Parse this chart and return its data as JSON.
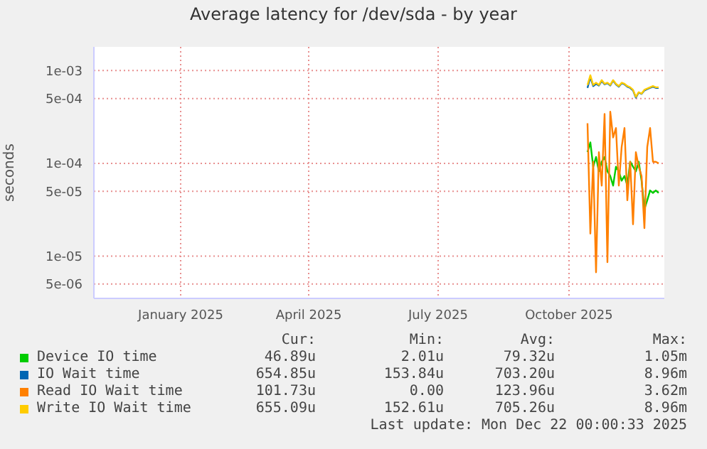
{
  "chart_data": {
    "type": "line",
    "title": "Average latency for /dev/sda - by year",
    "ylabel": "seconds",
    "x": [
      "2025-10-14",
      "2025-10-16",
      "2025-10-18",
      "2025-10-20",
      "2025-10-22",
      "2025-10-24",
      "2025-10-26",
      "2025-10-28",
      "2025-10-30",
      "2025-11-01",
      "2025-11-03",
      "2025-11-05",
      "2025-11-07",
      "2025-11-09",
      "2025-11-11",
      "2025-11-13",
      "2025-11-15",
      "2025-11-17",
      "2025-11-19",
      "2025-11-21",
      "2025-11-23",
      "2025-11-25",
      "2025-11-27",
      "2025-11-29",
      "2025-12-01",
      "2025-12-03"
    ],
    "series": [
      {
        "name": "Device IO time",
        "color": "#00cc00",
        "values": [
          0.000132,
          0.000168,
          9.2e-05,
          0.000117,
          8.2e-05,
          0.000104,
          0.000117,
          8.2e-05,
          7.3e-05,
          5.75e-05,
          9.2e-05,
          8.2e-05,
          6.5e-05,
          7.3e-05,
          5.75e-05,
          0.000104,
          9.2e-05,
          8.2e-05,
          0.000104,
          6.5e-05,
          3.2e-05,
          4e-05,
          5.1e-05,
          4.8e-05,
          5.1e-05,
          4.8e-05
        ]
      },
      {
        "name": "IO Wait time",
        "color": "#0066b3",
        "values": [
          0.00065,
          0.00085,
          0.00068,
          0.00072,
          0.00069,
          0.00077,
          0.00071,
          0.00073,
          0.00069,
          0.00078,
          0.00071,
          0.00067,
          0.00073,
          0.00071,
          0.00067,
          0.00065,
          0.00061,
          0.00051,
          0.00058,
          0.00056,
          0.00061,
          0.00063,
          0.00065,
          0.00067,
          0.00065,
          0.00065
        ]
      },
      {
        "name": "Read IO Wait time",
        "color": "#ff8000",
        "values": [
          0.00027,
          1.75e-05,
          0.000104,
          6.7e-06,
          0.000132,
          5.75e-05,
          0.00034,
          8.6e-06,
          0.00036,
          0.00019,
          0.00024,
          5.75e-05,
          0.00015,
          0.00024,
          4e-05,
          0.000104,
          2.2e-05,
          0.000132,
          9.2e-05,
          7.3e-05,
          2e-05,
          0.00015,
          0.00024,
          0.000104,
          0.000104,
          0.0001
        ]
      },
      {
        "name": "Write IO Wait time",
        "color": "#ffcc00",
        "values": [
          0.0007,
          0.00089,
          0.0007,
          0.00074,
          0.0007,
          0.00079,
          0.00072,
          0.00074,
          0.0007,
          0.00079,
          0.00072,
          0.00068,
          0.00074,
          0.00072,
          0.00068,
          0.00066,
          0.00062,
          0.00052,
          0.000585,
          0.000565,
          0.00062,
          0.00064,
          0.00066,
          0.00068,
          0.00066,
          0.00066
        ]
      }
    ],
    "log": "y",
    "ylim": [
      3.5e-06,
      0.0018
    ],
    "yticks": [
      {
        "value": 0.001,
        "label": "1e-03"
      },
      {
        "value": 0.0005,
        "label": "5e-04"
      },
      {
        "value": 0.0001,
        "label": "1e-04"
      },
      {
        "value": 5e-05,
        "label": "5e-05"
      },
      {
        "value": 1e-05,
        "label": "1e-05"
      },
      {
        "value": 5e-06,
        "label": "5e-06"
      }
    ],
    "xlim": [
      "2024-11-01",
      "2025-12-07"
    ],
    "xticks": [
      {
        "value": "2025-01-01",
        "label": "January 2025"
      },
      {
        "value": "2025-04-01",
        "label": "April 2025"
      },
      {
        "value": "2025-07-01",
        "label": "July 2025"
      },
      {
        "value": "2025-10-01",
        "label": "October 2025"
      }
    ],
    "grid": true,
    "legend": "bottom",
    "marker": "none",
    "line_style": "solid",
    "annotations": [
      "Cur:",
      "Min:",
      "Avg:",
      "Max:",
      "46.89u",
      "2.01u",
      "79.32u",
      "1.05m",
      "654.85u",
      "153.84u",
      "703.20u",
      "8.96m",
      "101.73u",
      "0.00",
      "123.96u",
      "3.62m",
      "655.09u",
      "152.61u",
      "705.26u",
      "8.96m",
      "Last update: Mon Dec 22 00:00:33 2025"
    ]
  }
}
